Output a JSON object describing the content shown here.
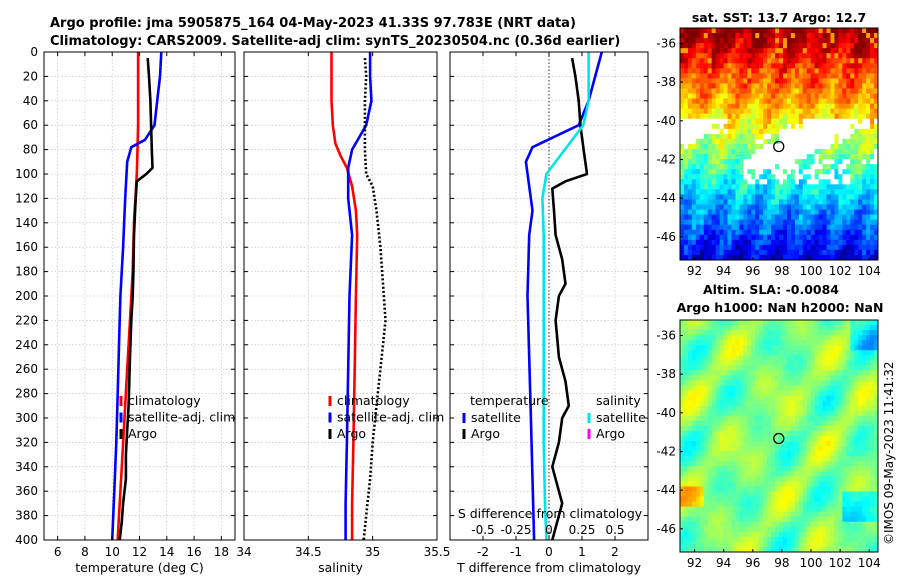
{
  "title": {
    "line1": "Argo profile: jma 5905875_164 04-May-2023 41.33S 97.783E (NRT data)",
    "line2": "Climatology: CARS2009. Satellite-adj clim: synTS_20230504.nc (0.36d earlier)"
  },
  "side_text": "©IMOS 09-May-2023 11:41:32",
  "chart_data": [
    {
      "id": "temperature",
      "type": "line",
      "xlabel": "temperature (deg C)",
      "ylabel": "",
      "xlim": [
        5,
        19
      ],
      "ylim": [
        400,
        0
      ],
      "xticks": [
        6,
        8,
        10,
        12,
        14,
        16,
        18
      ],
      "yticks": [
        0,
        20,
        40,
        60,
        80,
        100,
        120,
        140,
        160,
        180,
        200,
        220,
        240,
        260,
        280,
        300,
        320,
        340,
        360,
        380,
        400
      ],
      "grid": true,
      "legend": [
        "climatology",
        "satellite-adj. clim",
        "Argo"
      ],
      "series": [
        {
          "name": "climatology",
          "color": "#ff0000",
          "style": "solid",
          "points": [
            [
              11.9,
              0
            ],
            [
              11.9,
              40
            ],
            [
              11.9,
              60
            ],
            [
              11.85,
              80
            ],
            [
              11.8,
              100
            ],
            [
              11.6,
              140
            ],
            [
              11.5,
              180
            ],
            [
              11.3,
              220
            ],
            [
              11.1,
              260
            ],
            [
              10.9,
              300
            ],
            [
              10.7,
              340
            ],
            [
              10.5,
              380
            ],
            [
              10.4,
              400
            ]
          ]
        },
        {
          "name": "satellite-adj. clim",
          "color": "#0000ff",
          "style": "solid",
          "points": [
            [
              13.6,
              0
            ],
            [
              13.5,
              20
            ],
            [
              13.3,
              40
            ],
            [
              13.1,
              60
            ],
            [
              12.4,
              72
            ],
            [
              11.4,
              78
            ],
            [
              11.1,
              90
            ],
            [
              10.95,
              120
            ],
            [
              10.8,
              160
            ],
            [
              10.6,
              200
            ],
            [
              10.5,
              240
            ],
            [
              10.4,
              280
            ],
            [
              10.3,
              320
            ],
            [
              10.15,
              360
            ],
            [
              10.0,
              400
            ]
          ]
        },
        {
          "name": "Argo",
          "color": "#000000",
          "style": "solid",
          "points": [
            [
              12.6,
              5
            ],
            [
              12.7,
              20
            ],
            [
              12.8,
              40
            ],
            [
              12.85,
              60
            ],
            [
              12.9,
              80
            ],
            [
              12.95,
              95
            ],
            [
              12.5,
              100
            ],
            [
              11.8,
              106
            ],
            [
              11.7,
              125
            ],
            [
              11.6,
              150
            ],
            [
              11.55,
              180
            ],
            [
              11.5,
              200
            ],
            [
              11.4,
              220
            ],
            [
              11.3,
              250
            ],
            [
              11.25,
              270
            ],
            [
              11.2,
              290
            ],
            [
              11.1,
              310
            ],
            [
              11.0,
              330
            ],
            [
              11.0,
              350
            ],
            [
              10.8,
              370
            ],
            [
              10.7,
              385
            ],
            [
              10.55,
              400
            ]
          ]
        }
      ]
    },
    {
      "id": "salinity",
      "type": "line",
      "xlabel": "salinity",
      "ylabel": "",
      "xlim": [
        34,
        35.5
      ],
      "ylim": [
        400,
        0
      ],
      "xticks": [
        34,
        34.5,
        35,
        35.5
      ],
      "yticks": [
        0,
        20,
        40,
        60,
        80,
        100,
        120,
        140,
        160,
        180,
        200,
        220,
        240,
        260,
        280,
        300,
        320,
        340,
        360,
        380,
        400
      ],
      "grid": true,
      "legend": [
        "climatology",
        "satellite-adj. clim",
        "Argo"
      ],
      "series": [
        {
          "name": "climatology",
          "color": "#ff0000",
          "style": "solid",
          "points": [
            [
              34.68,
              0
            ],
            [
              34.68,
              40
            ],
            [
              34.69,
              60
            ],
            [
              34.71,
              75
            ],
            [
              34.75,
              85
            ],
            [
              34.8,
              95
            ],
            [
              34.84,
              110
            ],
            [
              34.87,
              130
            ],
            [
              34.88,
              150
            ],
            [
              34.87,
              200
            ],
            [
              34.86,
              260
            ],
            [
              34.85,
              320
            ],
            [
              34.84,
              370
            ],
            [
              34.84,
              400
            ]
          ]
        },
        {
          "name": "satellite-adj. clim",
          "color": "#0000ff",
          "style": "solid",
          "points": [
            [
              34.98,
              0
            ],
            [
              34.98,
              20
            ],
            [
              34.99,
              40
            ],
            [
              34.95,
              60
            ],
            [
              34.84,
              80
            ],
            [
              34.81,
              95
            ],
            [
              34.81,
              120
            ],
            [
              34.84,
              150
            ],
            [
              34.82,
              200
            ],
            [
              34.81,
              260
            ],
            [
              34.8,
              320
            ],
            [
              34.79,
              370
            ],
            [
              34.79,
              400
            ]
          ]
        },
        {
          "name": "Argo",
          "color": "#000000",
          "style": "dotted",
          "points": [
            [
              34.94,
              5
            ],
            [
              34.95,
              20
            ],
            [
              34.94,
              40
            ],
            [
              34.94,
              60
            ],
            [
              34.94,
              80
            ],
            [
              34.95,
              100
            ],
            [
              35.0,
              110
            ],
            [
              35.03,
              130
            ],
            [
              35.06,
              160
            ],
            [
              35.08,
              190
            ],
            [
              35.1,
              220
            ],
            [
              35.07,
              250
            ],
            [
              35.04,
              280
            ],
            [
              35.02,
              300
            ],
            [
              35.0,
              320
            ],
            [
              34.98,
              350
            ],
            [
              34.95,
              380
            ],
            [
              34.93,
              400
            ]
          ]
        }
      ]
    },
    {
      "id": "difference",
      "type": "line",
      "xlabel": "T difference from climatology",
      "x2label": "S difference from climatology",
      "ylabel": "",
      "xlim": [
        -3,
        3
      ],
      "x2lim": [
        -0.75,
        0.75
      ],
      "ylim": [
        400,
        0
      ],
      "xticks": [
        -2,
        -1,
        0,
        1,
        2
      ],
      "x2ticks": [
        "-0.5",
        "-0.25",
        "0",
        "0.25",
        "0.5"
      ],
      "x2tick_values": [
        -0.5,
        -0.25,
        0,
        0.25,
        0.5
      ],
      "yticks": [
        0,
        20,
        40,
        60,
        80,
        100,
        120,
        140,
        160,
        180,
        200,
        220,
        240,
        260,
        280,
        300,
        320,
        340,
        360,
        380,
        400
      ],
      "grid": true,
      "legend_left": {
        "heading": "temperature",
        "items": [
          "satellite",
          "Argo"
        ]
      },
      "legend_right": {
        "heading": "salinity",
        "items": [
          "satellite",
          "Argo"
        ]
      },
      "series": [
        {
          "name": "T satellite",
          "color": "#0000ff",
          "style": "solid",
          "points": [
            [
              1.6,
              0
            ],
            [
              1.4,
              20
            ],
            [
              1.2,
              40
            ],
            [
              0.9,
              60
            ],
            [
              -0.5,
              78
            ],
            [
              -0.7,
              90
            ],
            [
              -0.6,
              110
            ],
            [
              -0.5,
              130
            ],
            [
              -0.6,
              150
            ],
            [
              -0.65,
              200
            ],
            [
              -0.6,
              250
            ],
            [
              -0.55,
              300
            ],
            [
              -0.5,
              350
            ],
            [
              -0.45,
              400
            ]
          ]
        },
        {
          "name": "T Argo",
          "color": "#000000",
          "style": "solid",
          "points": [
            [
              0.7,
              5
            ],
            [
              0.8,
              20
            ],
            [
              0.9,
              40
            ],
            [
              0.95,
              60
            ],
            [
              1.05,
              80
            ],
            [
              1.15,
              100
            ],
            [
              0.5,
              106
            ],
            [
              0.1,
              112
            ],
            [
              0.15,
              130
            ],
            [
              0.2,
              150
            ],
            [
              0.4,
              170
            ],
            [
              0.5,
              190
            ],
            [
              0.3,
              200
            ],
            [
              0.2,
              220
            ],
            [
              0.3,
              250
            ],
            [
              0.5,
              270
            ],
            [
              0.6,
              290
            ],
            [
              0.4,
              300
            ],
            [
              0.3,
              320
            ],
            [
              0.1,
              340
            ],
            [
              0.4,
              370
            ],
            [
              0.2,
              390
            ],
            [
              0.1,
              400
            ]
          ]
        },
        {
          "name": "S satellite",
          "color": "#00e5e5",
          "style": "solid",
          "points": [
            [
              0.3,
              0
            ],
            [
              0.3,
              20
            ],
            [
              0.3,
              40
            ],
            [
              0.26,
              60
            ],
            [
              0.12,
              80
            ],
            [
              -0.02,
              100
            ],
            [
              -0.05,
              120
            ],
            [
              -0.04,
              150
            ],
            [
              -0.04,
              200
            ],
            [
              -0.04,
              260
            ],
            [
              -0.04,
              320
            ],
            [
              -0.03,
              370
            ],
            [
              -0.02,
              400
            ]
          ]
        }
      ]
    },
    {
      "id": "sst_map",
      "type": "heatmap",
      "title": "sat. SST: 13.7 Argo: 12.7",
      "xticks": [
        92,
        94,
        96,
        98,
        100,
        102,
        104
      ],
      "yticks": [
        -36,
        -38,
        -40,
        -42,
        -44,
        -46
      ],
      "xlim": [
        91,
        104.6
      ],
      "ylim": [
        -47.2,
        -35.2
      ],
      "marker": {
        "lon": 97.783,
        "lat": -41.33
      }
    },
    {
      "id": "sla_map",
      "type": "heatmap",
      "title": "Altim. SLA: -0.0084",
      "subtitle": "Argo h1000: NaN h2000: NaN",
      "xticks": [
        92,
        94,
        96,
        98,
        100,
        102,
        104
      ],
      "yticks": [
        -36,
        -38,
        -40,
        -42,
        -44,
        -46
      ],
      "xlim": [
        91,
        104.6
      ],
      "ylim": [
        -47.2,
        -35.2
      ],
      "marker": {
        "lon": 97.783,
        "lat": -41.33
      }
    }
  ]
}
